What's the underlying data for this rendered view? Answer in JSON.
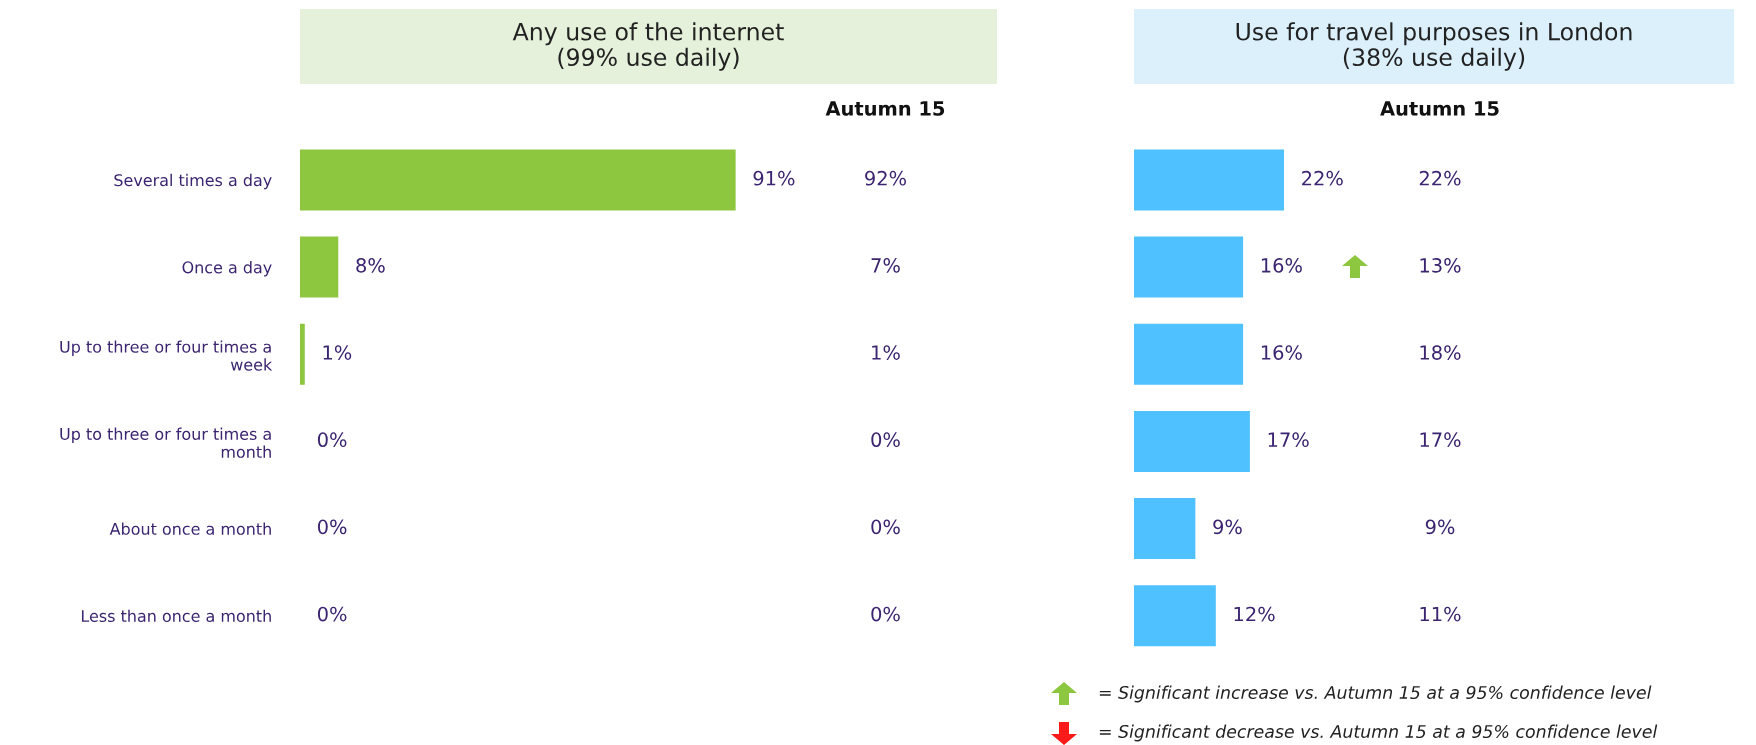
{
  "chart_data": [
    {
      "type": "bar",
      "orientation": "horizontal",
      "title": "Any use of the internet\n(99% use daily)",
      "categories": [
        "Several times a day",
        "Once a day",
        "Up to three or four times a\nweek",
        "Up to three or four times a\nmonth",
        "About once a month",
        "Less than once a month"
      ],
      "values": [
        91,
        8,
        1,
        0,
        0,
        0
      ],
      "color": "#8dc63f",
      "data_labels": true,
      "value_labels": [
        "91%",
        "8%",
        "1%",
        "0%",
        "0%",
        "0%"
      ],
      "tick_labels": "y",
      "annotations": [
        "Autumn 15",
        "92%",
        "7%",
        "1%",
        "0%",
        "0%",
        "0%"
      ]
    },
    {
      "type": "bar",
      "orientation": "horizontal",
      "title": "Use for travel purposes in London\n(38% use daily)",
      "categories": [
        null,
        null,
        null,
        null,
        null,
        null
      ],
      "values": [
        22,
        16,
        16,
        17,
        9,
        12
      ],
      "color": "#4fc1ff",
      "data_labels": true,
      "value_labels": [
        "22%",
        "16%",
        "16%",
        "17%",
        "9%",
        "12%"
      ],
      "tick_labels": false,
      "annotations": [
        "Autumn 15",
        "22%",
        "13%",
        "18%",
        "17%",
        "9%",
        "11%",
        "= Significant increase vs. Autumn 15 at a 95% confidence level",
        "= Significant decrease vs. Autumn 15 at a 95% confidence level"
      ]
    }
  ]
}
